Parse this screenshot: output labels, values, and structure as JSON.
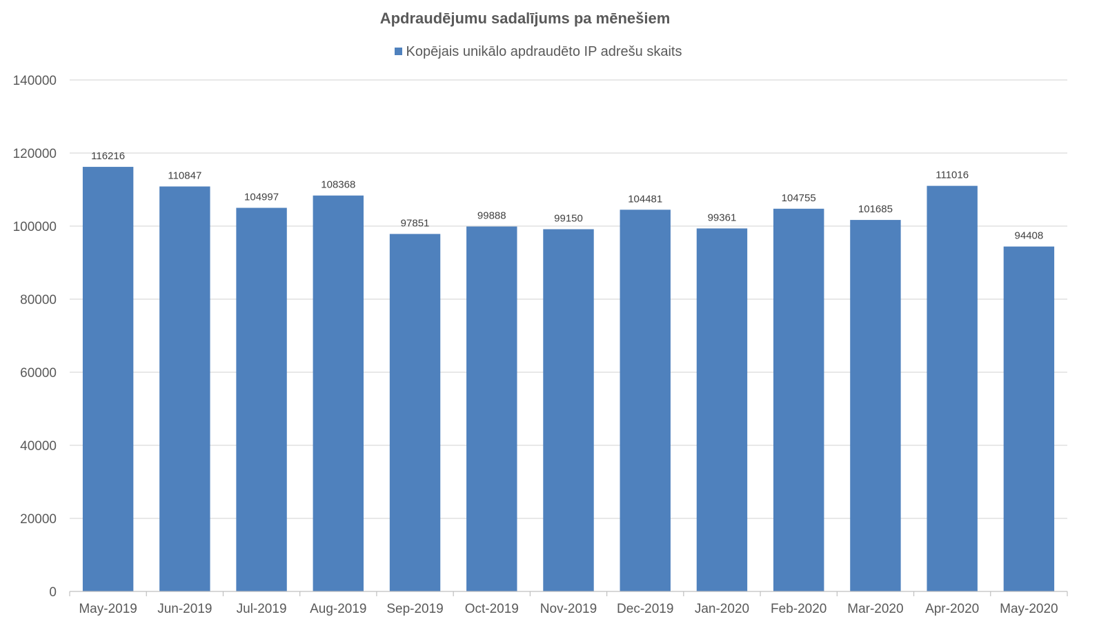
{
  "chart_data": {
    "type": "bar",
    "title": "Apdraudējumu sadalījums pa mēnešiem",
    "categories": [
      "May-2019",
      "Jun-2019",
      "Jul-2019",
      "Aug-2019",
      "Sep-2019",
      "Oct-2019",
      "Nov-2019",
      "Dec-2019",
      "Jan-2020",
      "Feb-2020",
      "Mar-2020",
      "Apr-2020",
      "May-2020"
    ],
    "series": [
      {
        "name": "Kopējais unikālo apdraudēto IP adrešu skaits",
        "values": [
          116216,
          110847,
          104997,
          108368,
          97851,
          99888,
          99150,
          104481,
          99361,
          104755,
          101685,
          111016,
          94408
        ],
        "color": "#4f81bd"
      }
    ],
    "xlabel": "",
    "ylabel": "",
    "ylim": [
      0,
      140000
    ],
    "yticks": [
      0,
      20000,
      40000,
      60000,
      80000,
      100000,
      120000,
      140000
    ],
    "grid": true,
    "legend_position": "top",
    "data_labels": true,
    "colors": {
      "grid": "#d9d9d9",
      "axis": "#bfbfbf",
      "text": "#595959"
    }
  }
}
